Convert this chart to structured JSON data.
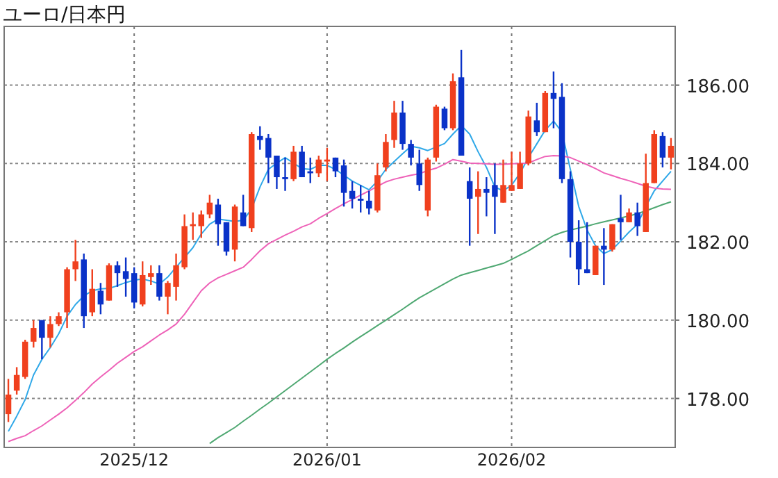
{
  "chart_data": {
    "type": "candlestick",
    "title": "ユーロ/日本円",
    "categories": [
      null,
      null,
      null,
      null,
      null,
      null,
      null,
      null,
      null,
      null,
      null,
      null,
      null,
      null,
      null,
      "2025/12",
      null,
      null,
      null,
      null,
      null,
      null,
      null,
      null,
      null,
      null,
      null,
      null,
      null,
      null,
      null,
      null,
      null,
      null,
      null,
      null,
      null,
      null,
      "2026/01",
      null,
      null,
      null,
      null,
      null,
      null,
      null,
      null,
      null,
      null,
      null,
      null,
      null,
      null,
      null,
      null,
      null,
      null,
      null,
      null,
      null,
      "2026/02",
      null,
      null,
      null,
      null,
      null,
      null,
      null,
      null,
      null,
      null,
      null,
      null,
      null,
      null,
      null,
      null,
      null,
      null,
      null
    ],
    "ohlc": [
      [
        177.6,
        178.5,
        177.4,
        178.1
      ],
      [
        178.2,
        178.8,
        178.1,
        178.6
      ],
      [
        178.55,
        179.5,
        178.5,
        179.45
      ],
      [
        179.45,
        180.0,
        179.3,
        179.8
      ],
      [
        180.0,
        180.0,
        179.0,
        179.55
      ],
      [
        179.55,
        180.1,
        179.3,
        179.9
      ],
      [
        179.9,
        180.2,
        179.85,
        180.1
      ],
      [
        180.2,
        181.35,
        179.8,
        181.3
      ],
      [
        181.3,
        182.05,
        181.0,
        181.5
      ],
      [
        181.55,
        181.7,
        179.8,
        180.1
      ],
      [
        180.2,
        181.3,
        180.1,
        180.8
      ],
      [
        180.75,
        180.95,
        180.15,
        180.4
      ],
      [
        180.5,
        181.45,
        180.5,
        181.4
      ],
      [
        181.4,
        181.5,
        180.85,
        181.2
      ],
      [
        181.25,
        181.6,
        180.6,
        181.05
      ],
      [
        181.2,
        181.35,
        180.3,
        180.45
      ],
      [
        180.4,
        181.5,
        180.35,
        181.15
      ],
      [
        181.1,
        181.4,
        180.9,
        181.2
      ],
      [
        181.2,
        181.4,
        180.5,
        180.6
      ],
      [
        180.6,
        181.0,
        180.15,
        180.95
      ],
      [
        180.85,
        181.7,
        180.5,
        181.4
      ],
      [
        181.35,
        182.7,
        181.3,
        182.4
      ],
      [
        182.4,
        182.75,
        182.05,
        182.45
      ],
      [
        182.4,
        182.8,
        182.1,
        182.7
      ],
      [
        182.7,
        183.2,
        182.6,
        183.0
      ],
      [
        182.95,
        183.1,
        181.9,
        182.45
      ],
      [
        182.5,
        182.5,
        181.65,
        181.75
      ],
      [
        181.8,
        182.95,
        181.5,
        182.9
      ],
      [
        182.75,
        183.2,
        182.4,
        182.4
      ],
      [
        182.35,
        184.8,
        182.25,
        184.75
      ],
      [
        184.7,
        184.95,
        184.35,
        184.6
      ],
      [
        184.65,
        184.75,
        183.5,
        184.15
      ],
      [
        184.2,
        184.2,
        183.35,
        183.65
      ],
      [
        183.65,
        184.15,
        183.3,
        183.6
      ],
      [
        183.6,
        184.45,
        183.55,
        184.3
      ],
      [
        184.3,
        184.45,
        183.65,
        183.65
      ],
      [
        183.8,
        184.15,
        183.5,
        183.75
      ],
      [
        183.75,
        184.2,
        183.65,
        184.1
      ],
      [
        184.05,
        184.4,
        183.55,
        184.1
      ],
      [
        184.15,
        184.15,
        183.65,
        183.8
      ],
      [
        183.95,
        184.1,
        182.9,
        183.25
      ],
      [
        183.3,
        183.55,
        182.85,
        183.1
      ],
      [
        183.1,
        183.45,
        182.75,
        183.05
      ],
      [
        183.05,
        183.3,
        182.7,
        182.85
      ],
      [
        182.8,
        184.0,
        182.75,
        183.7
      ],
      [
        183.9,
        184.75,
        183.8,
        184.55
      ],
      [
        184.6,
        185.6,
        184.4,
        185.3
      ],
      [
        185.3,
        185.6,
        184.35,
        184.5
      ],
      [
        184.5,
        184.6,
        183.95,
        184.15
      ],
      [
        184.0,
        184.35,
        183.3,
        183.45
      ],
      [
        182.8,
        184.15,
        182.65,
        184.1
      ],
      [
        184.15,
        185.5,
        184.05,
        185.45
      ],
      [
        185.4,
        185.45,
        184.85,
        184.9
      ],
      [
        184.9,
        186.3,
        184.85,
        186.1
      ],
      [
        186.2,
        186.9,
        184.2,
        184.2
      ],
      [
        183.55,
        183.9,
        181.9,
        183.1
      ],
      [
        183.15,
        183.8,
        182.2,
        183.35
      ],
      [
        183.35,
        183.65,
        182.65,
        183.25
      ],
      [
        183.45,
        184.0,
        182.2,
        183.15
      ],
      [
        183.0,
        184.1,
        183.0,
        183.45
      ],
      [
        183.3,
        184.3,
        183.3,
        183.45
      ],
      [
        183.35,
        184.3,
        183.35,
        184.0
      ],
      [
        184.0,
        185.35,
        183.95,
        185.2
      ],
      [
        185.1,
        185.55,
        184.7,
        184.8
      ],
      [
        184.8,
        185.85,
        184.8,
        185.8
      ],
      [
        185.8,
        186.35,
        184.9,
        185.65
      ],
      [
        185.7,
        186.05,
        183.5,
        183.6
      ],
      [
        183.6,
        183.8,
        181.6,
        182.0
      ],
      [
        182.0,
        182.55,
        180.9,
        181.3
      ],
      [
        181.3,
        182.5,
        181.2,
        181.2
      ],
      [
        181.15,
        181.9,
        181.15,
        181.9
      ],
      [
        181.9,
        182.35,
        180.9,
        181.8
      ],
      [
        181.8,
        182.45,
        181.75,
        182.45
      ],
      [
        182.6,
        183.2,
        182.05,
        182.5
      ],
      [
        182.5,
        182.85,
        182.5,
        182.75
      ],
      [
        182.75,
        183.0,
        182.15,
        182.4
      ],
      [
        182.25,
        184.25,
        182.25,
        183.5
      ],
      [
        183.5,
        184.85,
        183.5,
        184.75
      ],
      [
        184.7,
        184.8,
        183.9,
        184.15
      ],
      [
        184.15,
        184.65,
        183.85,
        184.45
      ]
    ],
    "colors": [
      "#f0401e",
      "#f0401e",
      "#f0401e",
      "#f0401e",
      "#0a32c8",
      "#f0401e",
      "#f0401e",
      "#f0401e",
      "#f0401e",
      "#0a32c8",
      "#f0401e",
      "#0a32c8",
      "#f0401e",
      "#0a32c8",
      "#0a32c8",
      "#0a32c8",
      "#f0401e",
      "#f0401e",
      "#0a32c8",
      "#f0401e",
      "#f0401e",
      "#f0401e",
      "#f0401e",
      "#f0401e",
      "#f0401e",
      "#0a32c8",
      "#0a32c8",
      "#f0401e",
      "#0a32c8",
      "#f0401e",
      "#0a32c8",
      "#0a32c8",
      "#0a32c8",
      "#0a32c8",
      "#f0401e",
      "#0a32c8",
      "#0a32c8",
      "#f0401e",
      "#f0401e",
      "#0a32c8",
      "#0a32c8",
      "#0a32c8",
      "#0a32c8",
      "#0a32c8",
      "#f0401e",
      "#f0401e",
      "#f0401e",
      "#0a32c8",
      "#0a32c8",
      "#0a32c8",
      "#f0401e",
      "#f0401e",
      "#0a32c8",
      "#f0401e",
      "#0a32c8",
      "#0a32c8",
      "#f0401e",
      "#0a32c8",
      "#0a32c8",
      "#f0401e",
      "#f0401e",
      "#f0401e",
      "#f0401e",
      "#0a32c8",
      "#f0401e",
      "#0a32c8",
      "#0a32c8",
      "#0a32c8",
      "#0a32c8",
      "#0a32c8",
      "#f0401e",
      "#0a32c8",
      "#f0401e",
      "#0a32c8",
      "#f0401e",
      "#0a32c8",
      "#f0401e",
      "#f0401e",
      "#0a32c8",
      "#f0401e"
    ],
    "series": [
      {
        "type": "line",
        "color": "#2fa8e8",
        "values": [
          177.16,
          177.55,
          177.97,
          178.6,
          179.0,
          179.3,
          179.65,
          180.1,
          180.4,
          180.62,
          180.75,
          180.8,
          180.81,
          180.88,
          180.96,
          181.02,
          181.05,
          181.0,
          180.92,
          181.1,
          181.35,
          181.6,
          181.85,
          182.2,
          182.45,
          182.58,
          182.55,
          182.52,
          182.55,
          182.84,
          183.4,
          183.85,
          184.01,
          184.15,
          184.01,
          183.87,
          183.85,
          183.95,
          183.95,
          183.85,
          183.7,
          183.55,
          183.44,
          183.33,
          183.55,
          183.85,
          184.05,
          184.25,
          184.44,
          184.4,
          184.33,
          184.42,
          184.51,
          184.75,
          184.97,
          184.75,
          184.3,
          183.9,
          183.4,
          183.3,
          183.45,
          183.75,
          184.15,
          184.5,
          184.85,
          185.08,
          184.8,
          183.85,
          182.9,
          182.3,
          181.9,
          181.7,
          181.8,
          182.02,
          182.25,
          182.45,
          182.9,
          183.3,
          183.55,
          183.8
        ]
      },
      {
        "type": "line",
        "color": "#ee62b8",
        "values": [
          176.9,
          176.98,
          177.05,
          177.18,
          177.3,
          177.45,
          177.6,
          177.76,
          177.95,
          178.15,
          178.37,
          178.55,
          178.72,
          178.9,
          179.05,
          179.2,
          179.32,
          179.47,
          179.62,
          179.75,
          179.9,
          180.15,
          180.45,
          180.75,
          180.95,
          181.08,
          181.17,
          181.26,
          181.35,
          181.55,
          181.77,
          181.95,
          182.06,
          182.17,
          182.27,
          182.38,
          182.46,
          182.6,
          182.72,
          182.85,
          182.97,
          183.08,
          183.19,
          183.3,
          183.42,
          183.53,
          183.6,
          183.65,
          183.7,
          183.74,
          183.82,
          183.88,
          183.98,
          184.1,
          184.06,
          184.01,
          184.0,
          183.99,
          183.98,
          183.98,
          183.99,
          184.0,
          184.01,
          184.1,
          184.18,
          184.2,
          184.19,
          184.15,
          184.06,
          183.97,
          183.87,
          183.76,
          183.69,
          183.62,
          183.56,
          183.49,
          183.42,
          183.37,
          183.35,
          183.34
        ]
      },
      {
        "type": "line",
        "color": "#4fa872",
        "values": [
          null,
          null,
          null,
          null,
          null,
          null,
          null,
          null,
          null,
          null,
          null,
          null,
          null,
          null,
          null,
          null,
          null,
          null,
          null,
          null,
          null,
          null,
          null,
          null,
          176.85,
          177.0,
          177.13,
          177.26,
          177.42,
          177.57,
          177.73,
          177.88,
          178.04,
          178.2,
          178.36,
          178.52,
          178.68,
          178.84,
          179.0,
          179.15,
          179.29,
          179.44,
          179.58,
          179.72,
          179.86,
          180.0,
          180.14,
          180.28,
          180.43,
          180.57,
          180.69,
          180.81,
          180.93,
          181.05,
          181.15,
          181.21,
          181.27,
          181.33,
          181.39,
          181.45,
          181.55,
          181.66,
          181.77,
          181.9,
          182.03,
          182.16,
          182.24,
          182.3,
          182.35,
          182.4,
          182.46,
          182.51,
          182.56,
          182.61,
          182.66,
          182.72,
          182.79,
          182.87,
          182.95,
          183.02
        ]
      }
    ],
    "ylim": [
      176.75,
      187.5
    ],
    "yticks": [
      {
        "value": 178,
        "label": "178.00"
      },
      {
        "value": 180,
        "label": "180.00"
      },
      {
        "value": 182,
        "label": "182.00"
      },
      {
        "value": 184,
        "label": "184.00"
      },
      {
        "value": 186,
        "label": "186.00"
      }
    ],
    "grid": true
  }
}
